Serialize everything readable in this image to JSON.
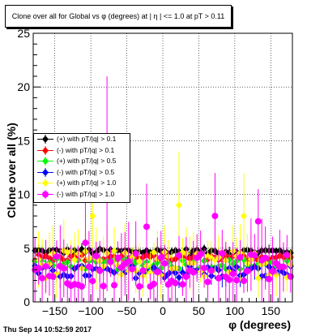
{
  "header": {
    "title": "Clone  over all for Global vs φ (degrees) at | η | <= 1.0 at pT > 0.11"
  },
  "footer": {
    "timestamp": "Thu Sep 14 10:52:59 2017"
  },
  "chart_data": {
    "type": "scatter",
    "title": "Clone  over all for Global vs φ (degrees) at | η | <= 1.0 at pT > 0.11",
    "xlabel": "φ (degrees)",
    "ylabel": "Clone  over all (%)",
    "xlim": [
      -180,
      180
    ],
    "ylim": [
      0,
      25
    ],
    "xticks": [
      -150,
      -100,
      -50,
      0,
      50,
      100,
      150
    ],
    "yticks": [
      0,
      5,
      10,
      15,
      20,
      25
    ],
    "grid": true,
    "legend_position": "middle-left",
    "series": [
      {
        "name": "(+) with pT/|q|  > 0.1",
        "color": "#000000",
        "marker": "diamond",
        "baseline": 4.7,
        "spread": 0.25,
        "errmin": 0.2,
        "errmax": 0.6
      },
      {
        "name": "(-) with pT/|q|  > 0.1",
        "color": "#ff0000",
        "marker": "diamond",
        "baseline": 4.1,
        "spread": 0.3,
        "errmin": 0.2,
        "errmax": 0.7
      },
      {
        "name": "(+) with pT/|q|  > 0.5",
        "color": "#00ff00",
        "marker": "diamond",
        "baseline": 3.5,
        "spread": 0.5,
        "errmin": 0.3,
        "errmax": 1.0
      },
      {
        "name": "(-) with pT/|q|  > 0.5",
        "color": "#0000ff",
        "marker": "diamond",
        "baseline": 2.8,
        "spread": 0.6,
        "errmin": 0.3,
        "errmax": 1.2
      },
      {
        "name": "(+) with pT/|q|  > 1.0",
        "color": "#ffff00",
        "marker": "diamond",
        "baseline": 3.5,
        "spread": 1.3,
        "errmin": 0.8,
        "errmax": 3.0
      },
      {
        "name": "(-) with pT/|q|  > 1.0",
        "color": "#ff00ff",
        "marker": "circle",
        "baseline": 3.0,
        "spread": 1.6,
        "errmin": 1.0,
        "errmax": 4.0
      }
    ],
    "nbins": 72
  }
}
